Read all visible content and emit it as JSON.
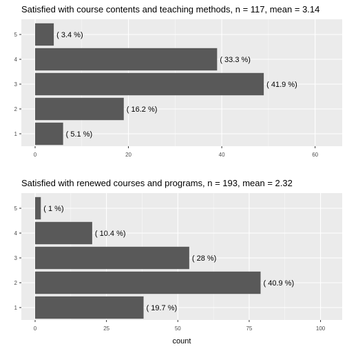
{
  "colors": {
    "panel_bg": "#EBEBEB",
    "grid_major": "#FFFFFF",
    "bar_fill": "#595959",
    "text": "#000000",
    "tick_text": "#4D4D4D"
  },
  "chart_data": [
    {
      "type": "bar",
      "orientation": "horizontal",
      "title": "Satisfied with course contents and teaching methods, n = 117, mean =  3.14",
      "categories": [
        "1",
        "2",
        "3",
        "4",
        "5"
      ],
      "values": [
        6,
        19,
        49,
        39,
        4
      ],
      "labels": [
        "( 5.1 %)",
        "( 16.2 %)",
        "( 41.9 %)",
        "( 33.3 %)",
        "( 3.4 %)"
      ],
      "xlim": [
        0,
        63
      ],
      "xticks": [
        0,
        20,
        40,
        60
      ],
      "xlabel": "",
      "ylabel": "",
      "grid": true
    },
    {
      "type": "bar",
      "orientation": "horizontal",
      "title": "Satisfied with renewed courses and programs, n = 193, mean =  2.32",
      "categories": [
        "1",
        "2",
        "3",
        "4",
        "5"
      ],
      "values": [
        38,
        79,
        54,
        20,
        2
      ],
      "labels": [
        "( 19.7 %)",
        "( 40.9 %)",
        "( 28 %)",
        "( 10.4 %)",
        "( 1 %)"
      ],
      "xlim": [
        0,
        103
      ],
      "xticks": [
        0,
        25,
        50,
        75,
        100
      ],
      "xlabel": "count",
      "ylabel": "",
      "grid": true
    }
  ]
}
